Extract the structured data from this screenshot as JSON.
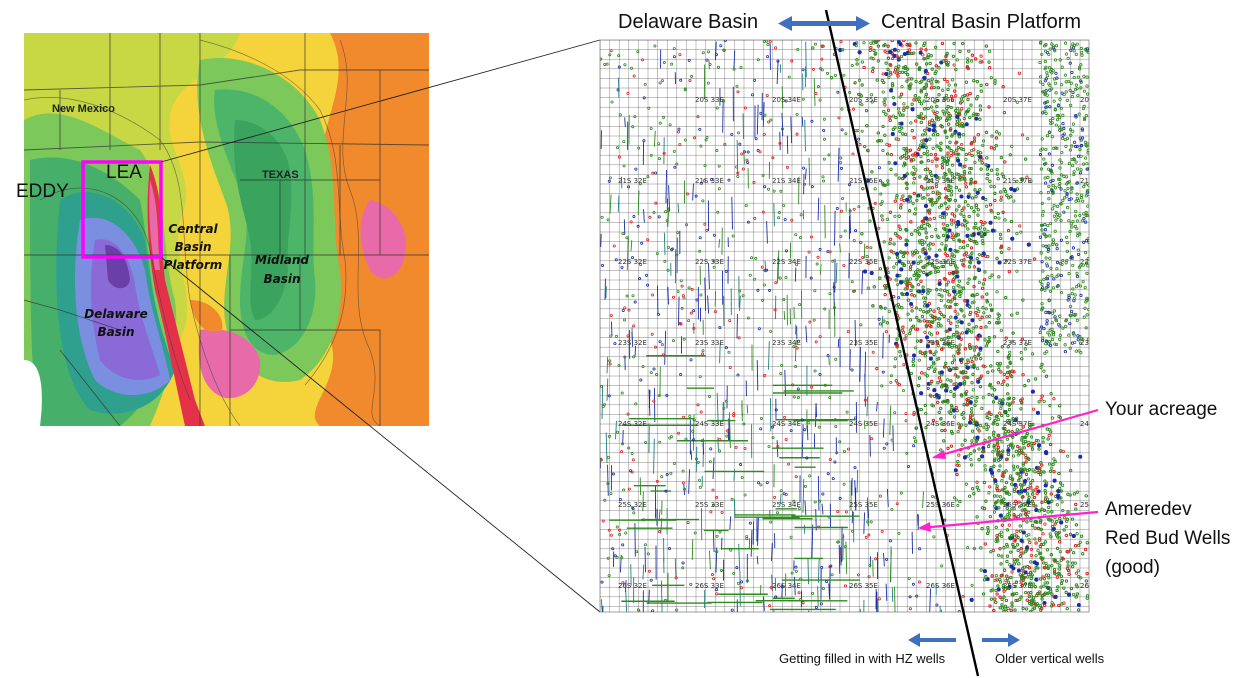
{
  "header": {
    "left_label": "Delaware Basin",
    "right_label": "Central Basin Platform"
  },
  "regional_map": {
    "state_labels": [
      "New Mexico",
      "TEXAS"
    ],
    "county_labels": [
      "EDDY",
      "LEA"
    ],
    "basin_labels": {
      "central": [
        "Central",
        "Basin",
        "Platform"
      ],
      "midland": [
        "Midland",
        "Basin"
      ],
      "delaware": [
        "Delaware",
        "Basin"
      ]
    },
    "highlight_color": "#ff00ff"
  },
  "well_map": {
    "township_labels": [
      "20S 33E",
      "20S 34E",
      "20S 35E",
      "20S 36E",
      "20S 37E",
      "20S 38E",
      "21S 32E",
      "21S 33E",
      "21S 34E",
      "21S 35E",
      "21S 36E",
      "21S 37E",
      "21S 38E",
      "22S 32E",
      "22S 33E",
      "22S 34E",
      "22S 35E",
      "22S 36E",
      "22S 37E",
      "22S 38E",
      "23S 32E",
      "23S 33E",
      "23S 34E",
      "23S 35E",
      "23S 36E",
      "23S 37E",
      "23S 38E",
      "24S 32E",
      "24S 33E",
      "24S 34E",
      "24S 35E",
      "24S 36E",
      "24S 37E",
      "24S 38E",
      "25S 32E",
      "25S 33E",
      "25S 34E",
      "25S 35E",
      "25S 36E",
      "25S 37E",
      "25S 38E",
      "26S 32E",
      "26S 33E",
      "26S 34E",
      "26S 35E",
      "26S 36E",
      "26S 37E",
      "26S 38E"
    ],
    "well_colors": {
      "green": "#2e8b1f",
      "red": "#e02020",
      "blue": "#1a2ea8",
      "teal": "#1f7f7f"
    }
  },
  "annotations": {
    "acreage": "Your acreage",
    "ameredev": [
      "Ameredev",
      "Red Bud Wells",
      "(good)"
    ],
    "hz_wells": "Getting filled in with HZ wells",
    "vertical_wells": "Older vertical wells",
    "pointer_color": "#ff22cc",
    "arrow_color": "#3f6fc0"
  }
}
